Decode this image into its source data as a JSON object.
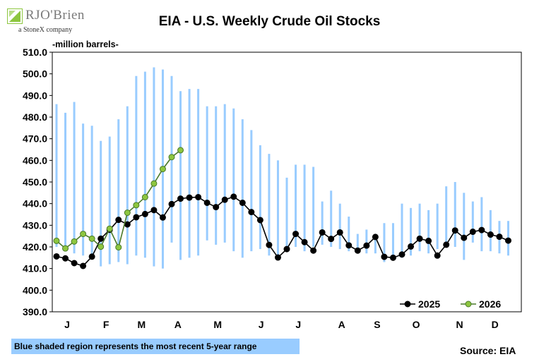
{
  "logo": {
    "brand": "RJO'Brien",
    "tagline": "a StoneX company",
    "accent": "#8dc63f"
  },
  "footer": {
    "note": "Blue shaded region represents the most recent 5-year range",
    "source": "Source: EIA"
  },
  "chart_data": {
    "type": "line",
    "title": "EIA - U.S. Weekly Crude Oil Stocks",
    "ylabel": "-million barrels-",
    "ylim": [
      390,
      510
    ],
    "ytick_step": 10,
    "ytick_labels": [
      "390.0",
      "400.0",
      "410.0",
      "420.0",
      "430.0",
      "440.0",
      "450.0",
      "460.0",
      "470.0",
      "480.0",
      "490.0",
      "500.0",
      "510.0"
    ],
    "x_unit": "week of year",
    "x_range": [
      1,
      53
    ],
    "month_labels": [
      {
        "label": "J",
        "week": 2.2
      },
      {
        "label": "F",
        "week": 6.6
      },
      {
        "label": "M",
        "week": 10.6
      },
      {
        "label": "A",
        "week": 14.7
      },
      {
        "label": "M",
        "week": 19.2
      },
      {
        "label": "J",
        "week": 24.1
      },
      {
        "label": "J",
        "week": 28.3
      },
      {
        "label": "A",
        "week": 33.2
      },
      {
        "label": "S",
        "week": 37.2
      },
      {
        "label": "O",
        "week": 41.6
      },
      {
        "label": "N",
        "week": 46.5
      },
      {
        "label": "D",
        "week": 50.5
      }
    ],
    "grid": false,
    "legend_position": "bottom-right",
    "range_band": {
      "name": "5-year range",
      "color": "#99ccff",
      "weeks": [
        1,
        2,
        3,
        4,
        5,
        6,
        7,
        8,
        9,
        10,
        11,
        12,
        13,
        14,
        15,
        16,
        17,
        18,
        19,
        20,
        21,
        22,
        23,
        24,
        25,
        26,
        27,
        28,
        29,
        30,
        31,
        32,
        33,
        34,
        35,
        36,
        37,
        38,
        39,
        40,
        41,
        42,
        43,
        44,
        45,
        46,
        47,
        48,
        49,
        50,
        51,
        52
      ],
      "low": [
        420,
        418,
        417,
        416,
        416,
        411,
        412,
        413,
        412,
        416,
        415,
        411,
        410,
        422,
        414,
        415,
        416,
        423,
        421,
        422,
        418,
        415,
        418,
        419,
        416,
        414,
        420,
        420,
        418,
        420,
        421,
        420,
        419,
        418,
        418,
        417,
        417,
        413,
        414,
        415,
        416,
        418,
        417,
        419,
        421,
        420,
        414,
        422,
        418,
        418,
        417,
        416
      ],
      "high": [
        486,
        482,
        487,
        477,
        476,
        469,
        471,
        479,
        485,
        499,
        501,
        503,
        502,
        499,
        492,
        493,
        493,
        485,
        485,
        486,
        484,
        479,
        474,
        467,
        463,
        460,
        452,
        458,
        458,
        457,
        441,
        446,
        440,
        434,
        426,
        428,
        426,
        431,
        431,
        440,
        438,
        440,
        437,
        440,
        448,
        450,
        445,
        441,
        443,
        437,
        432,
        432
      ]
    },
    "series": [
      {
        "name": "2025",
        "color": "#000000",
        "marker": "#000000",
        "x": [
          1,
          2,
          3,
          4,
          5,
          6,
          7,
          8,
          9,
          10,
          11,
          12,
          13,
          14,
          15,
          16,
          17,
          18,
          19,
          20,
          21,
          22,
          23,
          24,
          25,
          26,
          27,
          28,
          29,
          30,
          31,
          32,
          33,
          34,
          35,
          36,
          37,
          38,
          39,
          40,
          41,
          42,
          43,
          44,
          45,
          46,
          47,
          48,
          49,
          50,
          51,
          52
        ],
        "values": [
          415.6,
          414.7,
          412.5,
          411.2,
          415.5,
          423.8,
          427.9,
          432.5,
          430.4,
          433.7,
          435.2,
          437.0,
          433.6,
          439.8,
          442.3,
          442.8,
          443.0,
          440.4,
          438.4,
          441.8,
          443.2,
          440.4,
          436.1,
          432.4,
          420.9,
          415.1,
          419.0,
          426.0,
          422.2,
          418.3,
          426.7,
          423.7,
          426.7,
          420.7,
          418.3,
          420.6,
          424.6,
          415.4,
          415.0,
          416.5,
          420.2,
          423.8,
          422.8,
          416.0,
          421.0,
          427.6,
          424.2,
          427.0,
          427.8,
          425.7,
          424.7,
          422.9
        ]
      },
      {
        "name": "2026",
        "color": "#4a7a2a",
        "marker": "#8dc63f",
        "x": [
          1,
          2,
          3,
          4,
          5,
          6,
          7,
          8,
          9,
          10,
          11,
          12,
          13,
          14,
          15
        ],
        "values": [
          422.8,
          419.3,
          422.5,
          426.0,
          423.8,
          420.1,
          428.4,
          419.8,
          435.8,
          439.3,
          443.0,
          449.3,
          456.0,
          461.5,
          464.7
        ]
      }
    ]
  }
}
